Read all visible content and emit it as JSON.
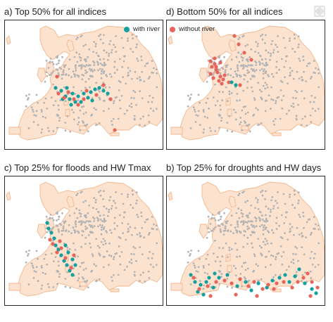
{
  "panels": [
    {
      "id": "a",
      "title": "a) Top 50% for all indices",
      "highlight": "top50"
    },
    {
      "id": "d",
      "title": "d) Bottom 50% for all indices",
      "highlight": "bottom50"
    },
    {
      "id": "c",
      "title": "c) Top 25% for floods and HW Tmax",
      "highlight": "floods"
    },
    {
      "id": "b",
      "title": "b) Top 25% for droughts and HW days",
      "highlight": "droughts"
    }
  ],
  "legend": {
    "with_river": {
      "label": "with river",
      "color": "#12a0a0"
    },
    "without_river": {
      "label": "without river",
      "color": "#e8645a"
    }
  },
  "colors": {
    "land_fill": "#fce3cf",
    "land_stroke": "#f3b68c",
    "background_city": "#b4b4b4"
  },
  "icons": {
    "expand": "expand-icon"
  }
}
